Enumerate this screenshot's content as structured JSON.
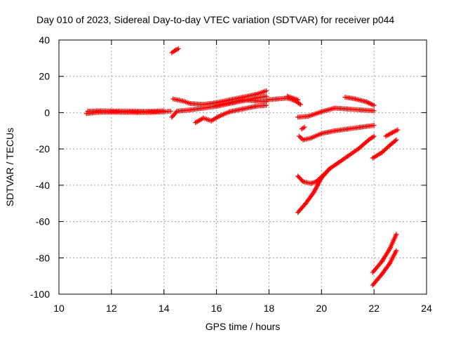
{
  "chart_data": {
    "type": "scatter",
    "title": "Day 010 of 2023, Sidereal Day-to-day VTEC variation (SDTVAR) for receiver p044",
    "xlabel": "GPS time / hours",
    "ylabel": "SDTVAR / TECUs",
    "xlim": [
      10,
      24
    ],
    "ylim": [
      -100,
      40
    ],
    "xticks": [
      10,
      12,
      14,
      16,
      18,
      20,
      22,
      24
    ],
    "yticks": [
      -100,
      -80,
      -60,
      -40,
      -20,
      0,
      20,
      40
    ],
    "grid": true,
    "marker": "plus",
    "color": "#ff0000",
    "segments": [
      [
        [
          11.05,
          -0.5
        ],
        [
          11.5,
          0.2
        ],
        [
          12.0,
          0.3
        ],
        [
          12.5,
          0.2
        ],
        [
          13.0,
          0.1
        ],
        [
          13.5,
          0.2
        ],
        [
          14.0,
          0.5
        ],
        [
          14.25,
          0.8
        ]
      ],
      [
        [
          11.1,
          0.8
        ],
        [
          11.6,
          1.0
        ],
        [
          12.2,
          0.9
        ],
        [
          12.8,
          0.8
        ],
        [
          13.4,
          0.7
        ],
        [
          14.0,
          1.0
        ]
      ],
      [
        [
          14.3,
          33
        ],
        [
          14.45,
          34.5
        ],
        [
          14.55,
          35.2
        ]
      ],
      [
        [
          14.3,
          -2.5
        ],
        [
          14.5,
          0.8
        ],
        [
          15.0,
          1.5
        ],
        [
          15.5,
          2.5
        ],
        [
          16.0,
          3.5
        ],
        [
          16.5,
          5.0
        ],
        [
          17.0,
          6.5
        ],
        [
          17.5,
          8.0
        ],
        [
          17.9,
          9.0
        ]
      ],
      [
        [
          14.35,
          7.5
        ],
        [
          14.7,
          6.5
        ],
        [
          15.0,
          5.0
        ],
        [
          15.5,
          4.5
        ],
        [
          16.0,
          5.5
        ],
        [
          16.5,
          7.0
        ],
        [
          17.0,
          8.5
        ],
        [
          17.5,
          10.0
        ],
        [
          17.9,
          12.0
        ]
      ],
      [
        [
          15.2,
          -5.5
        ],
        [
          15.5,
          -3.0
        ],
        [
          15.8,
          -4.5
        ],
        [
          16.1,
          -2.0
        ],
        [
          16.5,
          0.5
        ],
        [
          17.0,
          2.0
        ],
        [
          17.5,
          3.5
        ],
        [
          17.9,
          4.0
        ]
      ],
      [
        [
          16.0,
          4.0
        ],
        [
          16.5,
          5.5
        ],
        [
          17.0,
          7.0
        ],
        [
          17.5,
          6.5
        ],
        [
          17.9,
          6.0
        ]
      ],
      [
        [
          17.9,
          7.0
        ],
        [
          18.3,
          7.5
        ],
        [
          18.7,
          8.0
        ],
        [
          19.0,
          6.5
        ],
        [
          19.2,
          4.5
        ]
      ],
      [
        [
          18.7,
          9.0
        ],
        [
          18.9,
          8.0
        ],
        [
          19.1,
          7.0
        ]
      ],
      [
        [
          19.1,
          -2.5
        ],
        [
          19.5,
          -2.0
        ],
        [
          20.0,
          0.5
        ],
        [
          20.5,
          2.5
        ],
        [
          21.0,
          2.0
        ],
        [
          21.5,
          1.5
        ],
        [
          22.0,
          1.0
        ]
      ],
      [
        [
          19.15,
          -13
        ],
        [
          19.3,
          -15
        ],
        [
          19.6,
          -14
        ],
        [
          20.0,
          -11.5
        ],
        [
          20.5,
          -10
        ],
        [
          21.0,
          -9
        ],
        [
          21.5,
          -8
        ],
        [
          22.0,
          -7
        ]
      ],
      [
        [
          19.25,
          -9
        ],
        [
          19.35,
          -8
        ]
      ],
      [
        [
          20.9,
          8.5
        ],
        [
          21.3,
          7.5
        ],
        [
          21.7,
          6.0
        ],
        [
          22.0,
          4.0
        ]
      ],
      [
        [
          19.1,
          -35
        ],
        [
          19.3,
          -38
        ],
        [
          19.6,
          -39
        ],
        [
          19.8,
          -38
        ],
        [
          20.1,
          -34
        ],
        [
          20.3,
          -31
        ]
      ],
      [
        [
          19.1,
          -55
        ],
        [
          19.4,
          -50
        ],
        [
          19.7,
          -44
        ],
        [
          20.0,
          -36
        ],
        [
          20.3,
          -31
        ],
        [
          20.6,
          -28
        ],
        [
          21.0,
          -24
        ],
        [
          21.4,
          -20
        ],
        [
          21.8,
          -15
        ],
        [
          22.0,
          -13
        ]
      ],
      [
        [
          21.95,
          -25
        ],
        [
          22.3,
          -22
        ],
        [
          22.6,
          -18
        ],
        [
          22.85,
          -15
        ]
      ],
      [
        [
          22.45,
          -13
        ],
        [
          22.7,
          -11
        ],
        [
          22.9,
          -9.5
        ]
      ],
      [
        [
          21.95,
          -88
        ],
        [
          22.3,
          -82
        ],
        [
          22.6,
          -75
        ],
        [
          22.85,
          -67
        ]
      ],
      [
        [
          21.95,
          -95
        ],
        [
          22.3,
          -89
        ],
        [
          22.6,
          -83
        ],
        [
          22.85,
          -76
        ]
      ]
    ]
  }
}
